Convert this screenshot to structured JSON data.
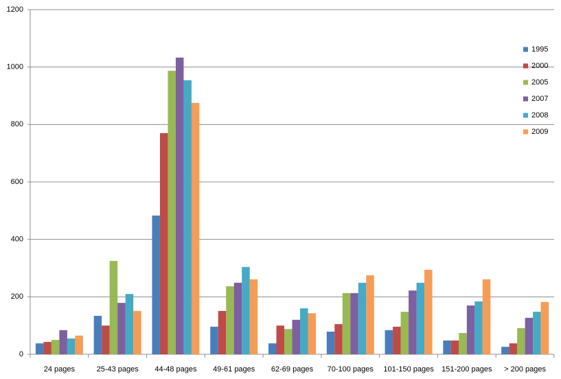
{
  "chart_data": {
    "type": "bar",
    "categories": [
      "24 pages",
      "25-43 pages",
      "44-48 pages",
      "49-61 pages",
      "62-69 pages",
      "70-100 pages",
      "101-150 pages",
      "151-200 pages",
      "> 200 pages"
    ],
    "series": [
      {
        "name": "1995",
        "color": "#4a7ebb",
        "values": [
          38,
          134,
          483,
          96,
          38,
          79,
          84,
          48,
          26
        ]
      },
      {
        "name": "2000",
        "color": "#be4b48",
        "values": [
          43,
          100,
          770,
          151,
          100,
          105,
          96,
          48,
          38
        ]
      },
      {
        "name": "2005",
        "color": "#98b954",
        "values": [
          50,
          325,
          987,
          237,
          88,
          213,
          148,
          74,
          91
        ]
      },
      {
        "name": "2007",
        "color": "#7d60a0",
        "values": [
          84,
          179,
          1033,
          249,
          120,
          213,
          222,
          170,
          127
        ]
      },
      {
        "name": "2008",
        "color": "#46aac5",
        "values": [
          55,
          210,
          954,
          304,
          160,
          249,
          249,
          184,
          148
        ]
      },
      {
        "name": "2009",
        "color": "#f59d56",
        "values": [
          65,
          151,
          875,
          261,
          143,
          275,
          294,
          261,
          182
        ]
      }
    ],
    "ylim": [
      0,
      1200
    ],
    "yticks": [
      0,
      200,
      400,
      600,
      800,
      1000,
      1200
    ],
    "grid": true,
    "legend": "right"
  }
}
